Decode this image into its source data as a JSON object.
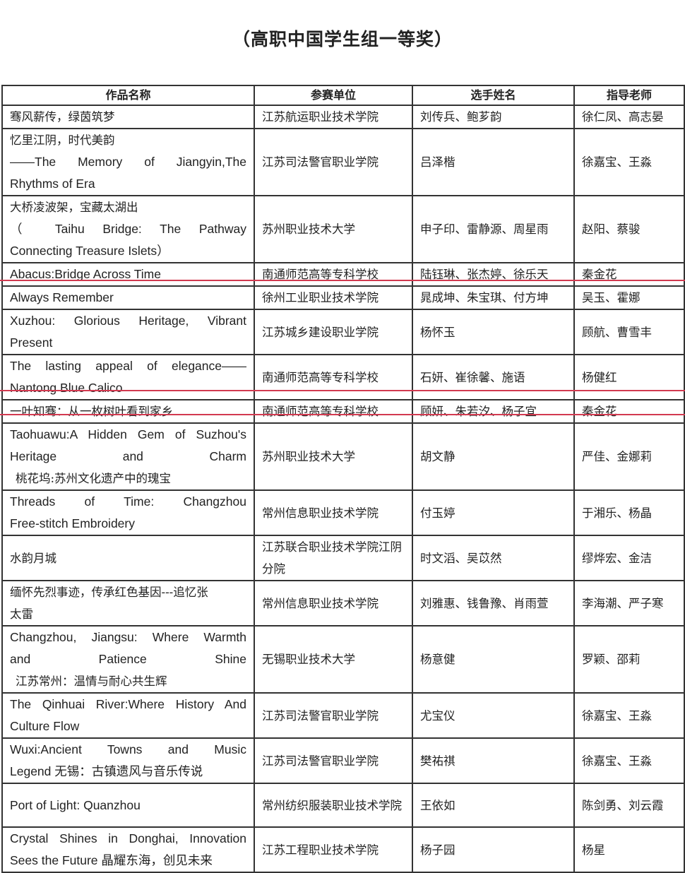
{
  "title": "（高职中国学生组一等奖）",
  "table": {
    "headers": [
      "作品名称",
      "参赛单位",
      "选手姓名",
      "指导老师"
    ],
    "rows": [
      {
        "work": [
          "骞风薪传，绿茵筑梦"
        ],
        "unit": "江苏航运职业技术学院",
        "students": "刘传兵、鲍芗韵",
        "teachers": "徐仁凤、高志晏"
      },
      {
        "work": [
          "忆里江阴，时代美韵",
          "——The Memory of Jiangyin,The",
          "Rhythms of Era"
        ],
        "unit": "江苏司法警官职业学院",
        "students": "吕泽楷",
        "teachers": "徐嘉宝、王淼"
      },
      {
        "work": [
          "大桥凌波架，宝藏太湖出",
          "（ Taihu Bridge: The Pathway",
          "Connecting Treasure Islets）"
        ],
        "unit": "苏州职业技术大学",
        "students": "申子印、雷静源、周星雨",
        "teachers": "赵阳、蔡骏"
      },
      {
        "work": [
          "Abacus:Bridge Across Time"
        ],
        "unit": "南通师范高等专科学校",
        "students": "陆钰琳、张杰婷、徐乐天",
        "teachers": "秦金花"
      },
      {
        "work": [
          "Always Remember"
        ],
        "unit": "徐州工业职业技术学院",
        "students": "晁成坤、朱宝琪、付方坤",
        "teachers": "吴玉、霍娜"
      },
      {
        "work": [
          "Xuzhou: Glorious Heritage, Vibrant",
          "Present"
        ],
        "unit": "江苏城乡建设职业学院",
        "students": "杨怀玉",
        "teachers": "顾航、曹雪丰"
      },
      {
        "work": [
          "The lasting appeal of elegance——",
          "Nantong Blue Calico"
        ],
        "unit": "南通师范高等专科学校",
        "students": "石妍、崔徐馨、施语",
        "teachers": "杨健红"
      },
      {
        "work": [
          "一叶知骞：从一枚树叶看到家乡"
        ],
        "unit": "南通师范高等专科学校",
        "students": "顾妍、朱若汐、杨子宜",
        "teachers": "秦金花"
      },
      {
        "work": [
          "Taohuawu:A Hidden Gem of Suzhou's",
          "Heritage and Charm",
          "桃花坞:苏州文化遗产中的瑰宝"
        ],
        "unit": "苏州职业技术大学",
        "students": "胡文静",
        "teachers": "严佳、金娜莉"
      },
      {
        "work": [
          "Threads of Time: Changzhou",
          "Free-stitch Embroidery"
        ],
        "unit": "常州信息职业技术学院",
        "students": "付玉婷",
        "teachers": "于湘乐、杨晶"
      },
      {
        "work": [
          "水韵月城"
        ],
        "unit": "江苏联合职业技术学院江阴分院",
        "students": "时文滔、吴苡然",
        "teachers": "缪烨宏、金洁"
      },
      {
        "work": [
          "缅怀先烈事迹，传承红色基因---追忆张",
          "太雷"
        ],
        "unit": "常州信息职业技术学院",
        "students": "刘雅惠、钱鲁豫、肖雨萱",
        "teachers": "李海潮、严子寒"
      },
      {
        "work": [
          "Changzhou, Jiangsu: Where Warmth",
          "and Patience Shine",
          "江苏常州：温情与耐心共生辉"
        ],
        "unit": "无锡职业技术大学",
        "students": "杨意健",
        "teachers": "罗颖、邵莉"
      },
      {
        "work": [
          "The Qinhuai River:Where History And",
          "Culture Flow"
        ],
        "unit": "江苏司法警官职业学院",
        "students": "尤宝仪",
        "teachers": "徐嘉宝、王淼"
      },
      {
        "work": [
          "Wuxi:Ancient Towns and Music",
          "Legend 无锡：古镇遗风与音乐传说"
        ],
        "unit": "江苏司法警官职业学院",
        "students": "樊祐祺",
        "teachers": "徐嘉宝、王淼"
      },
      {
        "work": [
          "Port of Light: Quanzhou"
        ],
        "unit": "常州纺织服装职业技术学院",
        "students": "王依如",
        "teachers": "陈剑勇、刘云霞"
      },
      {
        "work": [
          "Crystal Shines in Donghai, Innovation",
          "Sees the Future 晶耀东海，创见未来"
        ],
        "unit": "江苏工程职业技术学院",
        "students": "杨子园",
        "teachers": "杨星"
      }
    ]
  },
  "colors": {
    "highlight_line": "#d23a50",
    "border": "#333333"
  }
}
